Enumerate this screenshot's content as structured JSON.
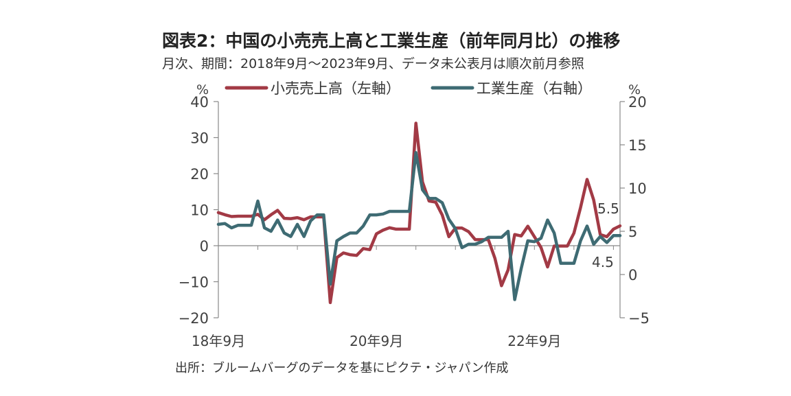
{
  "title": "図表2：中国の小売売上高と工業生産（前年同月比）の推移",
  "subtitle": "月次、期間：2018年9月～2023年9月、データ未公表月は順次前月参照",
  "source": "出所：ブルームバーグのデータを基にピクテ・ジャパン作成",
  "colors": {
    "retail": "#a23a45",
    "industrial": "#3e6b73",
    "axis": "#888888"
  },
  "chart_data": {
    "type": "line",
    "left_unit": "%",
    "right_unit": "%",
    "x_tick_labels": [
      "18年9月",
      "20年9月",
      "22年9月"
    ],
    "x_tick_index": [
      0,
      24,
      48
    ],
    "left_axis": {
      "ylim": [
        -20,
        40
      ],
      "ticks": [
        "40",
        "30",
        "20",
        "10",
        "0",
        "−10",
        "−20"
      ],
      "tick_values": [
        40,
        30,
        20,
        10,
        0,
        -10,
        -20
      ]
    },
    "right_axis": {
      "ylim": [
        -5,
        20
      ],
      "ticks": [
        "20",
        "15",
        "10",
        "5",
        "0",
        "−5"
      ],
      "tick_values": [
        20,
        15,
        10,
        5,
        0,
        -5
      ]
    },
    "series": [
      {
        "name": "小売売上高（左軸）",
        "axis": "left",
        "values": [
          9.2,
          8.6,
          8.1,
          8.2,
          8.2,
          8.2,
          8.7,
          7.2,
          8.6,
          9.8,
          7.6,
          7.5,
          7.8,
          7.2,
          8.0,
          8.0,
          8.0,
          -15.8,
          -3.3,
          -2.0,
          -2.5,
          -2.7,
          -0.8,
          -1.1,
          3.3,
          4.3,
          5.0,
          4.6,
          4.6,
          4.6,
          34.0,
          17.7,
          12.4,
          12.1,
          8.5,
          2.5,
          4.9,
          4.9,
          3.9,
          1.7,
          1.7,
          1.7,
          -3.5,
          -11.1,
          -6.7,
          3.1,
          2.7,
          5.4,
          2.5,
          -0.5,
          -5.9,
          -0.1,
          -0.1,
          -0.1,
          3.5,
          10.6,
          18.4,
          12.7,
          3.1,
          2.5,
          4.6,
          5.5
        ],
        "end_label": "5.5"
      },
      {
        "name": "工業生産（右軸）",
        "axis": "right",
        "values": [
          5.8,
          5.9,
          5.4,
          5.7,
          5.7,
          5.7,
          8.5,
          5.4,
          5.0,
          6.3,
          4.8,
          4.4,
          5.8,
          4.4,
          6.2,
          6.9,
          6.9,
          -1.1,
          3.9,
          4.4,
          4.8,
          4.8,
          5.6,
          6.9,
          6.9,
          7.0,
          7.3,
          7.3,
          7.3,
          7.3,
          14.1,
          9.8,
          8.8,
          8.8,
          8.3,
          6.4,
          5.3,
          3.1,
          3.5,
          3.5,
          3.8,
          4.3,
          4.3,
          4.3,
          5.0,
          -2.9,
          0.7,
          3.9,
          3.8,
          4.2,
          6.3,
          4.8,
          1.3,
          1.3,
          1.3,
          3.9,
          5.6,
          3.5,
          4.4,
          3.7,
          4.5,
          4.5
        ],
        "end_label": "4.5"
      }
    ]
  }
}
